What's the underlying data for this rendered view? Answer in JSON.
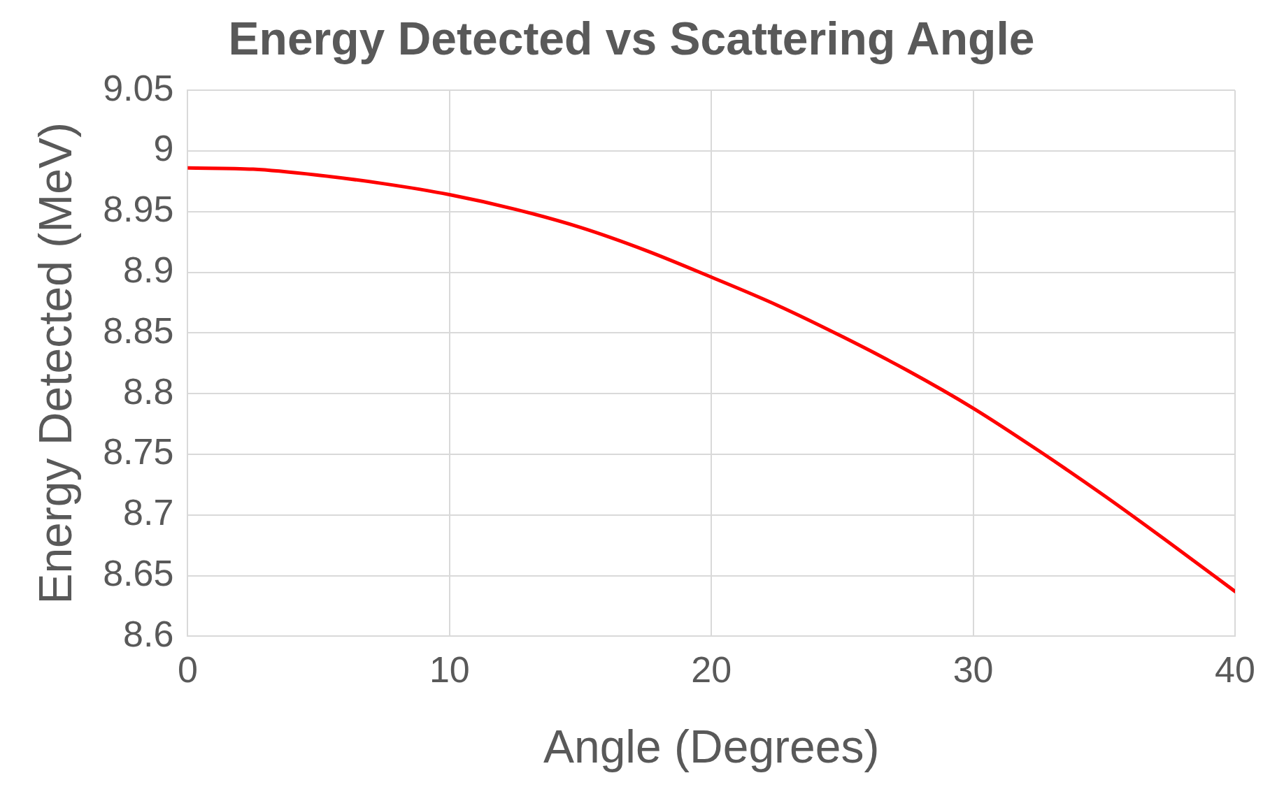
{
  "chart_data": {
    "type": "line",
    "title": "Energy Detected vs Scattering Angle",
    "xlabel": "Angle (Degrees)",
    "ylabel": "Energy Detected (MeV)",
    "x": [
      0,
      2.5,
      5,
      7.5,
      10,
      12.5,
      15,
      17.5,
      20,
      22.5,
      25,
      27.5,
      30,
      32.5,
      35,
      37.5,
      40
    ],
    "series": [
      {
        "color": "#ff0000",
        "values": [
          8.986,
          8.985,
          8.98,
          8.973,
          8.964,
          8.952,
          8.937,
          8.918,
          8.896,
          8.873,
          8.847,
          8.819,
          8.788,
          8.753,
          8.716,
          8.677,
          8.637
        ]
      }
    ],
    "xlim": [
      0,
      40
    ],
    "xticks": [
      0,
      10,
      20,
      30,
      40
    ],
    "ylim": [
      8.6,
      9.05
    ],
    "yticks": [
      8.6,
      8.65,
      8.7,
      8.75,
      8.8,
      8.85,
      8.9,
      8.95,
      9,
      9.05
    ],
    "grid": true,
    "legend": false,
    "marker": "none",
    "line_style": "solid"
  }
}
